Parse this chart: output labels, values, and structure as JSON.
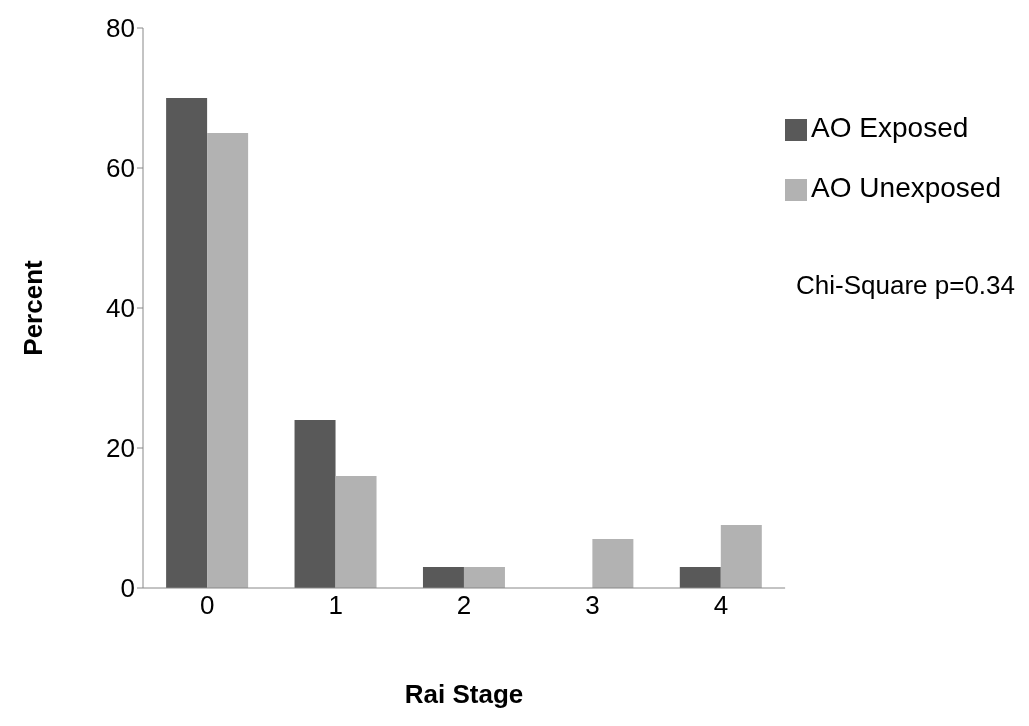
{
  "chart_data": {
    "type": "bar",
    "xlabel": "Rai Stage",
    "ylabel": "Percent",
    "categories": [
      "0",
      "1",
      "2",
      "3",
      "4"
    ],
    "series": [
      {
        "name": "AO Exposed",
        "color": "#595959",
        "values": [
          70,
          24,
          3,
          0,
          3
        ]
      },
      {
        "name": "AO Unexposed",
        "color": "#b2b2b2",
        "values": [
          65,
          16,
          3,
          7,
          9
        ]
      }
    ],
    "ylim": [
      0,
      80
    ],
    "yticks": [
      0,
      20,
      40,
      60,
      80
    ],
    "grid": false,
    "legend": "top right",
    "annotations": [
      "Chi-Square p=0.34"
    ]
  }
}
